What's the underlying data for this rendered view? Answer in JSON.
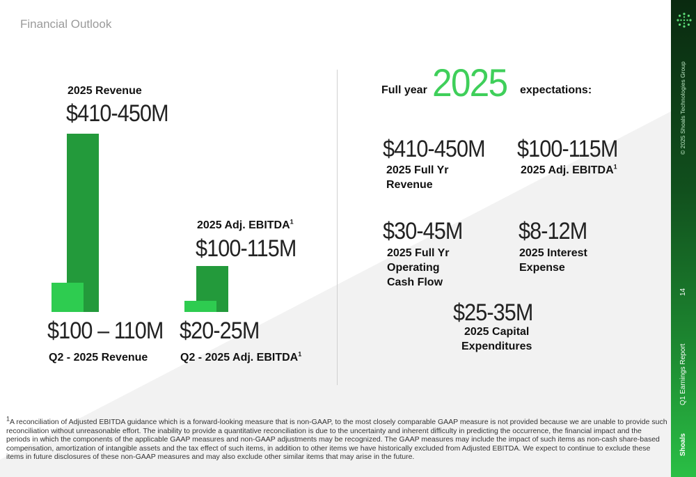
{
  "page_title": "Financial Outlook",
  "left": {
    "revenue_label": "2025 Revenue",
    "revenue_value": "$410-450M",
    "q2_revenue_value": "$100 – 110M",
    "q2_revenue_label": "Q2 - 2025 Revenue",
    "ebitda_label": "2025 Adj. EBITDA",
    "ebitda_value": "$100-115M",
    "q2_ebitda_value": "$20-25M",
    "q2_ebitda_label": "Q2 - 2025 Adj. EBITDA",
    "footnote_mark": "1"
  },
  "right": {
    "prefix": "Full year",
    "year": "2025",
    "suffix": "expectations:",
    "items": [
      {
        "value": "$410-450M",
        "label_line1": "2025 Full Yr",
        "label_line2": "Revenue",
        "label_line3": ""
      },
      {
        "value": "$100-115M",
        "label_line1": "2025 Adj. EBITDA",
        "label_line2": "",
        "label_line3": ""
      },
      {
        "value": "$30-45M",
        "label_line1": "2025 Full Yr",
        "label_line2": "Operating",
        "label_line3": "Cash Flow"
      },
      {
        "value": "$8-12M",
        "label_line1": "2025 Interest",
        "label_line2": "Expense",
        "label_line3": ""
      },
      {
        "value": "$25-35M",
        "label_line1": "2025 Capital",
        "label_line2": "Expenditures",
        "label_line3": ""
      }
    ]
  },
  "footnote": {
    "mark": "1",
    "text": "A reconciliation of Adjusted EBITDA guidance which is a forward-looking measure that is non-GAAP, to the most closely comparable GAAP measure is not provided because we are unable to provide such reconciliation without unreasonable effort. The inability to provide a quantitative reconciliation is due to the uncertainty and inherent difficulty in predicting the occurrence, the financial impact and the periods in which the components of the applicable GAAP measures and non-GAAP adjustments may be recognized. The GAAP measures may include the impact of such items as non-cash share-based compensation, amortization of intangible assets and the tax effect of such items, in addition to other items we have historically excluded from Adjusted EBITDA. We expect to continue to exclude these items in future disclosures of these non-GAAP measures and may also exclude other similar items that may arise in the future."
  },
  "sidebar": {
    "copyright": "© 2025 Shoals Technologies Group",
    "page_number": "14",
    "report": "Q1 Earnings Report",
    "brand": "Shoals"
  },
  "colors": {
    "bar_dark": "#239a3b",
    "bar_light": "#2ecc50",
    "year_accent": "#3fcf5a",
    "sidebar_bottom": "#2abf45"
  }
}
